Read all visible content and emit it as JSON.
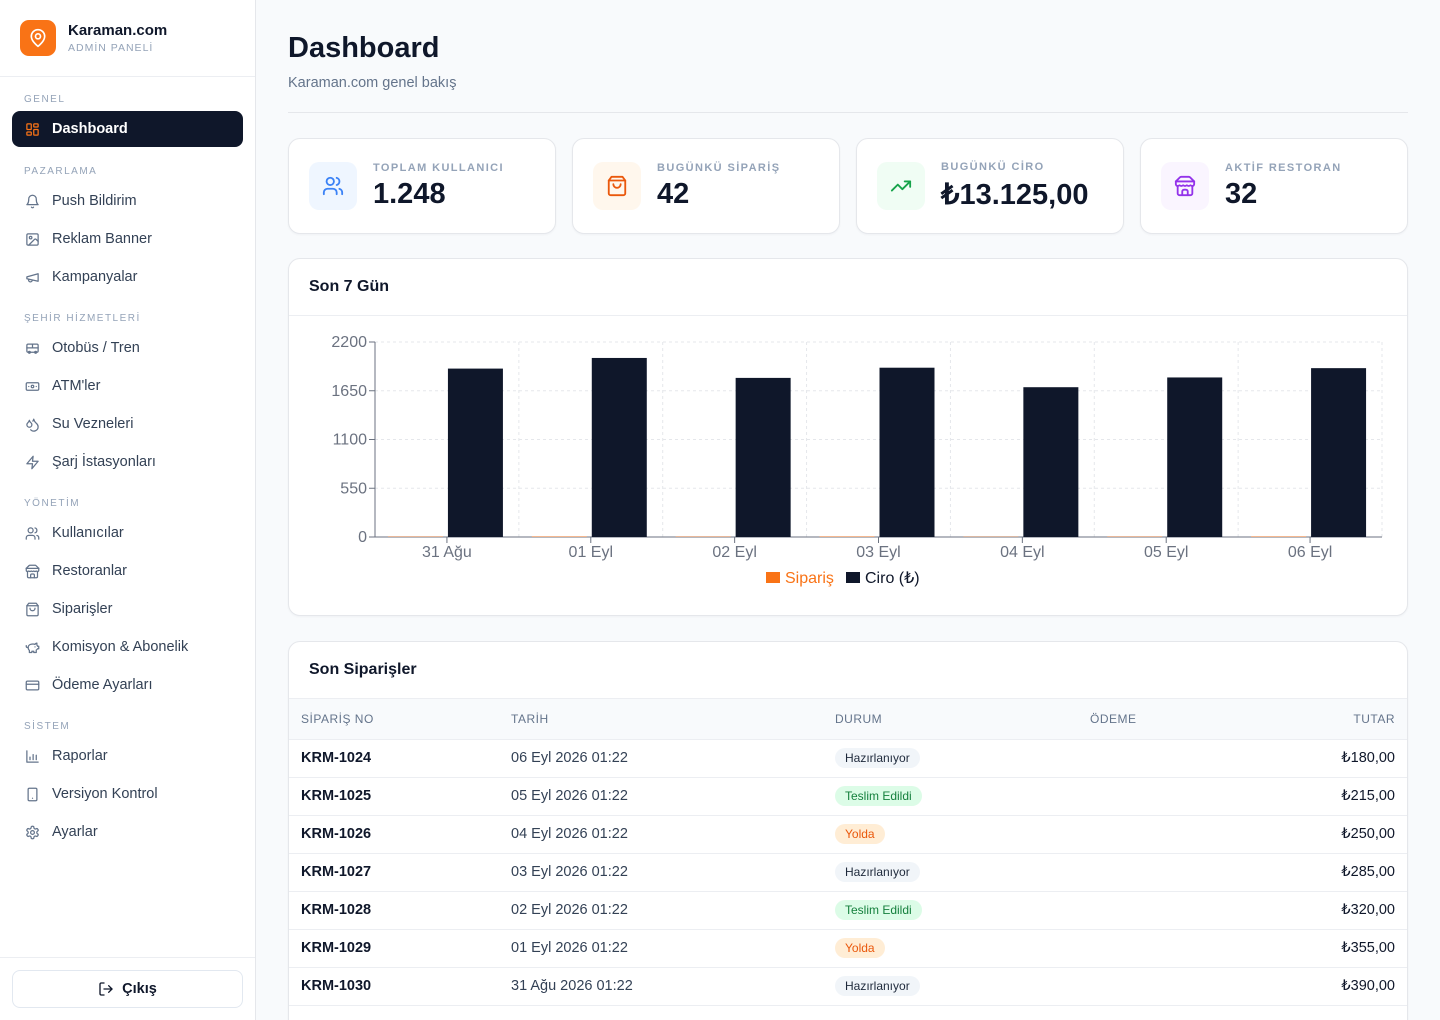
{
  "brand": {
    "name": "Karaman.com",
    "subtitle": "ADMİN PANELİ"
  },
  "sidebar": {
    "sections": [
      {
        "title": "GENEL",
        "items": [
          {
            "label": "Dashboard",
            "icon": "dashboard-grid-icon",
            "active": true
          }
        ]
      },
      {
        "title": "PAZARLAMA",
        "items": [
          {
            "label": "Push Bildirim",
            "icon": "bell-icon"
          },
          {
            "label": "Reklam Banner",
            "icon": "image-icon"
          },
          {
            "label": "Kampanyalar",
            "icon": "megaphone-icon"
          }
        ]
      },
      {
        "title": "ŞEHİR HİZMETLERİ",
        "items": [
          {
            "label": "Otobüs / Tren",
            "icon": "bus-icon"
          },
          {
            "label": "ATM'ler",
            "icon": "banknote-icon"
          },
          {
            "label": "Su Vezneleri",
            "icon": "droplets-icon"
          },
          {
            "label": "Şarj İstasyonları",
            "icon": "zap-icon"
          }
        ]
      },
      {
        "title": "YÖNETİM",
        "items": [
          {
            "label": "Kullanıcılar",
            "icon": "users-icon"
          },
          {
            "label": "Restoranlar",
            "icon": "store-icon"
          },
          {
            "label": "Siparişler",
            "icon": "shopping-bag-icon"
          },
          {
            "label": "Komisyon & Abonelik",
            "icon": "piggy-bank-icon"
          },
          {
            "label": "Ödeme Ayarları",
            "icon": "credit-card-icon"
          }
        ]
      },
      {
        "title": "SİSTEM",
        "items": [
          {
            "label": "Raporlar",
            "icon": "bar-chart-icon"
          },
          {
            "label": "Versiyon Kontrol",
            "icon": "smartphone-icon"
          },
          {
            "label": "Ayarlar",
            "icon": "settings-icon"
          }
        ]
      }
    ],
    "logout_label": "Çıkış"
  },
  "page": {
    "title": "Dashboard",
    "subtitle": "Karaman.com genel bakış"
  },
  "stats": [
    {
      "label": "TOPLAM KULLANICI",
      "value": "1.248",
      "icon": "users-icon",
      "color": "#3b82f6",
      "bg": "#eff6ff"
    },
    {
      "label": "BUGÜNKÜ SİPARİŞ",
      "value": "42",
      "icon": "shopping-bag-icon",
      "color": "#ea580c",
      "bg": "#fff7ed"
    },
    {
      "label": "BUGÜNKÜ CİRO",
      "value": "₺13.125,00",
      "icon": "trending-up-icon",
      "color": "#16a34a",
      "bg": "#f0fdf4"
    },
    {
      "label": "AKTİF RESTORAN",
      "value": "32",
      "icon": "store-icon",
      "color": "#9333ea",
      "bg": "#faf5ff"
    }
  ],
  "chart_card_title": "Son 7 Gün",
  "chart_data": {
    "type": "bar",
    "categories": [
      "31 Ağu",
      "01 Eyl",
      "02 Eyl",
      "03 Eyl",
      "04 Eyl",
      "05 Eyl",
      "06 Eyl"
    ],
    "series": [
      {
        "name": "Sipariş",
        "color": "#f97316",
        "values": [
          4,
          5,
          4,
          5,
          3,
          4,
          5
        ]
      },
      {
        "name": "Ciro (₺)",
        "color": "#0f172a",
        "values": [
          1900,
          2020,
          1795,
          1910,
          1690,
          1800,
          1905
        ]
      }
    ],
    "yticks": [
      0,
      550,
      1100,
      1650,
      2200
    ],
    "ylim": [
      0,
      2200
    ],
    "grid": true,
    "legend": "bottom"
  },
  "orders": {
    "title": "Son Siparişler",
    "columns": [
      "SİPARİŞ NO",
      "TARİH",
      "DURUM",
      "ÖDEME",
      "TUTAR"
    ],
    "status_styles": {
      "Hazırlanıyor": {
        "bg": "#f1f5f9",
        "fg": "#1e293b"
      },
      "Teslim Edildi": {
        "bg": "#dcfce7",
        "fg": "#15803d"
      },
      "Yolda": {
        "bg": "#ffedd5",
        "fg": "#ea580c"
      }
    },
    "rows": [
      {
        "no": "KRM-1024",
        "date": "06 Eyl 2026 01:22",
        "status": "Hazırlanıyor",
        "payment": "",
        "total": "₺180,00"
      },
      {
        "no": "KRM-1025",
        "date": "05 Eyl 2026 01:22",
        "status": "Teslim Edildi",
        "payment": "",
        "total": "₺215,00"
      },
      {
        "no": "KRM-1026",
        "date": "04 Eyl 2026 01:22",
        "status": "Yolda",
        "payment": "",
        "total": "₺250,00"
      },
      {
        "no": "KRM-1027",
        "date": "03 Eyl 2026 01:22",
        "status": "Hazırlanıyor",
        "payment": "",
        "total": "₺285,00"
      },
      {
        "no": "KRM-1028",
        "date": "02 Eyl 2026 01:22",
        "status": "Teslim Edildi",
        "payment": "",
        "total": "₺320,00"
      },
      {
        "no": "KRM-1029",
        "date": "01 Eyl 2026 01:22",
        "status": "Yolda",
        "payment": "",
        "total": "₺355,00"
      },
      {
        "no": "KRM-1030",
        "date": "31 Ağu 2026 01:22",
        "status": "Hazırlanıyor",
        "payment": "",
        "total": "₺390,00"
      }
    ]
  }
}
